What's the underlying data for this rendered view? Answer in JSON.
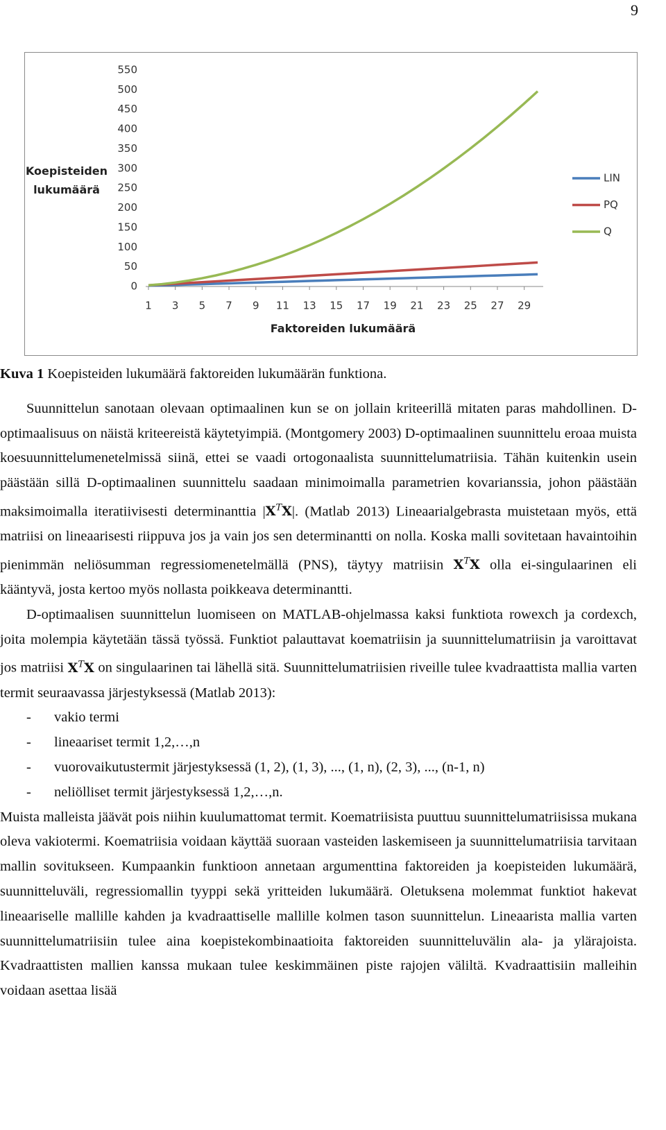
{
  "page_number": "9",
  "chart_data": {
    "type": "line",
    "ylabel": "Koepisteiden lukumäärä",
    "xlabel": "Faktoreiden lukumäärä",
    "x": [
      1,
      2,
      3,
      4,
      5,
      6,
      7,
      8,
      9,
      10,
      11,
      12,
      13,
      14,
      15,
      16,
      17,
      18,
      19,
      20,
      21,
      22,
      23,
      24,
      25,
      26,
      27,
      28,
      29,
      30
    ],
    "series": [
      {
        "name": "LIN",
        "color": "#4a7ebb",
        "values": [
          2,
          3,
          4,
          5,
          6,
          7,
          8,
          9,
          10,
          11,
          12,
          13,
          14,
          15,
          16,
          17,
          18,
          19,
          20,
          21,
          22,
          23,
          24,
          25,
          26,
          27,
          28,
          29,
          30,
          31
        ]
      },
      {
        "name": "PQ",
        "color": "#be4b48",
        "values": [
          3,
          5,
          7,
          9,
          11,
          13,
          15,
          17,
          19,
          21,
          23,
          25,
          27,
          29,
          31,
          33,
          35,
          37,
          39,
          41,
          43,
          45,
          47,
          49,
          51,
          53,
          55,
          57,
          59,
          61
        ]
      },
      {
        "name": "Q",
        "color": "#98b954",
        "values": [
          3,
          6,
          10,
          15,
          21,
          28,
          36,
          45,
          55,
          66,
          78,
          91,
          105,
          120,
          136,
          153,
          171,
          190,
          210,
          231,
          253,
          276,
          300,
          325,
          351,
          378,
          406,
          435,
          465,
          496
        ]
      }
    ],
    "xlim": [
      1,
      30
    ],
    "xticks": [
      1,
      3,
      5,
      7,
      9,
      11,
      13,
      15,
      17,
      19,
      21,
      23,
      25,
      27,
      29
    ],
    "ylim": [
      0,
      550
    ],
    "yticks": [
      0,
      50,
      100,
      150,
      200,
      250,
      300,
      350,
      400,
      450,
      500,
      550
    ],
    "grid": false,
    "legend": "right"
  },
  "caption": {
    "label": "Kuva 1",
    "text": "Koepisteiden lukumäärä faktoreiden lukumäärän funktiona."
  },
  "paragraphs": [
    [
      "Suunnittelun sanotaan olevaan optimaalinen kun se on jollain kriteerillä mitaten paras mahdollinen. D-optimaalisuus on näistä kriteereistä käytetyimpiä. (Montgomery 2003) D-optimaalinen suunnittelu eroaa muista koesuunnittelumenetelmissä siinä, ettei se vaadi ortogonaalista suunnittelumatriisia. Tähän kuitenkin usein päästään sillä D-optimaalinen suunnittelu saadaan minimoimalla parametrien kovarianssia, johon päästään maksimoimalla iteratiivisesti determinanttia |",
      {
        "base": "X",
        "sup": "T",
        "tail": "X"
      },
      "|. (Matlab 2013) Lineaarialgebrasta muistetaan myös, että matriisi on lineaarisesti riippuva jos ja vain jos sen determinantti on nolla. Koska malli sovitetaan havaintoihin pienimmän neliösumman regressiomenetelmällä (PNS), täytyy matriisin ",
      {
        "base": "X",
        "sup": "T",
        "tail": "X"
      },
      " olla ei-singulaarinen eli kääntyvä, josta kertoo myös nollasta poikkeava determinantti."
    ],
    [
      "D-optimaalisen suunnittelun luomiseen on MATLAB-ohjelmassa kaksi funktiota rowexch ja cordexch, joita molempia käytetään tässä työssä. Funktiot palauttavat koematriisin ja suunnittelumatriisin ja varoittavat jos matriisi ",
      {
        "base": "X",
        "sup": "T",
        "tail": "X"
      },
      " on singulaarinen tai lähellä sitä. Suunnittelumatriisien riveille tulee kvadraattista mallia varten termit seuraavassa järjestyksessä (Matlab 2013):"
    ],
    [
      "Muista malleista jäävät pois niihin kuulumattomat termit. Koematriisista puuttuu suunnittelumatriisissa mukana oleva vakiotermi. Koematriisia voidaan käyttää suoraan vasteiden laskemiseen ja suunnittelumatriisia tarvitaan mallin sovitukseen. Kumpaankin funktioon annetaan argumenttina faktoreiden ja koepisteiden lukumäärä, suunnitteluväli, regressiomallin tyyppi sekä yritteiden lukumäärä.  Oletuksena molemmat funktiot hakevat lineaariselle mallille kahden ja kvadraattiselle mallille kolmen tason suunnittelun. Lineaarista mallia varten suunnittelumatriisiin tulee aina koepistekombinaatioita faktoreiden suunnitteluvälin ala- ja ylärajoista. Kvadraattisten mallien kanssa mukaan tulee keskimmäinen piste rajojen väliltä. Kvadraattisiin malleihin voidaan asettaa lisää"
    ]
  ],
  "list": [
    "vakio termi",
    "lineaariset termit 1,2,…,n",
    "vuorovaikutustermit järjestyksessä (1, 2), (1, 3), ..., (1, n), (2, 3), ..., (n-1, n)",
    "neliölliset termit järjestyksessä 1,2,…,n."
  ]
}
